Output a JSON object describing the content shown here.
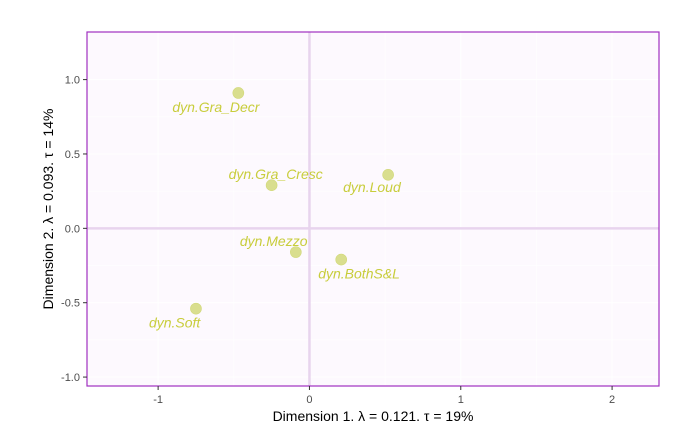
{
  "chart_data": {
    "type": "scatter",
    "xlabel": "Dimension 1.   λ = 0.121.  τ = 19%",
    "ylabel": "Dimension 2.   λ = 0.093.  τ = 14%",
    "xlim": [
      -1.47,
      2.31
    ],
    "ylim": [
      -1.06,
      1.32
    ],
    "x_ticks": [
      -1,
      0,
      1,
      2
    ],
    "y_ticks": [
      -1.0,
      -0.5,
      0.0,
      0.5,
      1.0
    ],
    "x_tick_labels": [
      "-1",
      "0",
      "1",
      "2"
    ],
    "y_tick_labels": [
      "-1.0",
      "-0.5",
      "0.0",
      "0.5",
      "1.0"
    ],
    "grid": true,
    "points": [
      {
        "label": "dyn.Gra_Decr",
        "x": -0.47,
        "y": 0.91
      },
      {
        "label": "dyn.Gra_Cresc",
        "x": -0.25,
        "y": 0.29
      },
      {
        "label": "dyn.Loud",
        "x": 0.52,
        "y": 0.36
      },
      {
        "label": "dyn.Mezzo",
        "x": -0.09,
        "y": -0.16
      },
      {
        "label": "dyn.BothS&L",
        "x": 0.21,
        "y": -0.21
      },
      {
        "label": "dyn.Soft",
        "x": -0.75,
        "y": -0.54
      }
    ],
    "colors": {
      "point": "#d2d97a",
      "label": "#c8cd3c",
      "panel_background": "#fdf9fe",
      "panel_border": "#a030c0",
      "zero_line": "#e8d4ee",
      "grid": "#ffffff"
    }
  }
}
